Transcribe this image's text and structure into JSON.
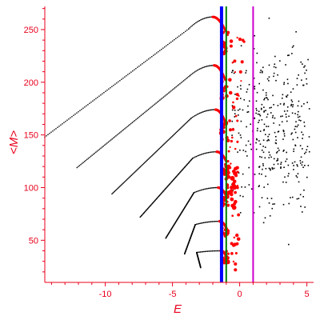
{
  "colors": {
    "axis": "#e8001c",
    "branch_points": "#000000",
    "highlight_points": "#ff0000",
    "scatter_points": "#000000",
    "vline_blue": "#0000ff",
    "vline_green": "#008000",
    "vline_magenta": "#cc00cc"
  },
  "chart_data": {
    "type": "scatter",
    "title": "",
    "xlabel": "E",
    "ylabel": "<M>",
    "xlim": [
      -14.5,
      5.5
    ],
    "ylim": [
      10,
      272
    ],
    "xticks": [
      -10,
      -5,
      0,
      5
    ],
    "yticks": [
      50,
      100,
      150,
      200,
      250
    ],
    "grid": false,
    "legend": "none",
    "branches": [
      {
        "start": [
          -14.5,
          148
        ],
        "peak": [
          -2.0,
          262
        ],
        "end": [
          -1.1,
          250
        ]
      },
      {
        "start": [
          -12.1,
          119
        ],
        "peak": [
          -1.9,
          216
        ],
        "end": [
          -1.1,
          203
        ]
      },
      {
        "start": [
          -9.5,
          94
        ],
        "peak": [
          -1.8,
          174
        ],
        "end": [
          -1.1,
          163
        ]
      },
      {
        "start": [
          -7.4,
          72
        ],
        "peak": [
          -1.7,
          134
        ],
        "end": [
          -1.0,
          125
        ]
      },
      {
        "start": [
          -5.5,
          52
        ],
        "peak": [
          -1.6,
          100
        ],
        "end": [
          -1.0,
          92
        ]
      },
      {
        "start": [
          -4.1,
          37
        ],
        "peak": [
          -1.5,
          68
        ],
        "end": [
          -1.0,
          62
        ]
      },
      {
        "start": [
          -2.9,
          24
        ],
        "peak": [
          -1.4,
          40
        ],
        "end": [
          -1.0,
          35
        ]
      }
    ],
    "scatter_region": {
      "x": [
        -0.6,
        5.2
      ],
      "y": [
        40,
        270
      ],
      "count": 420
    },
    "vertical_lines": [
      {
        "x": -1.35,
        "color": "blue"
      },
      {
        "x": -1.0,
        "color": "green"
      },
      {
        "x": 1.0,
        "color": "magenta"
      }
    ]
  }
}
